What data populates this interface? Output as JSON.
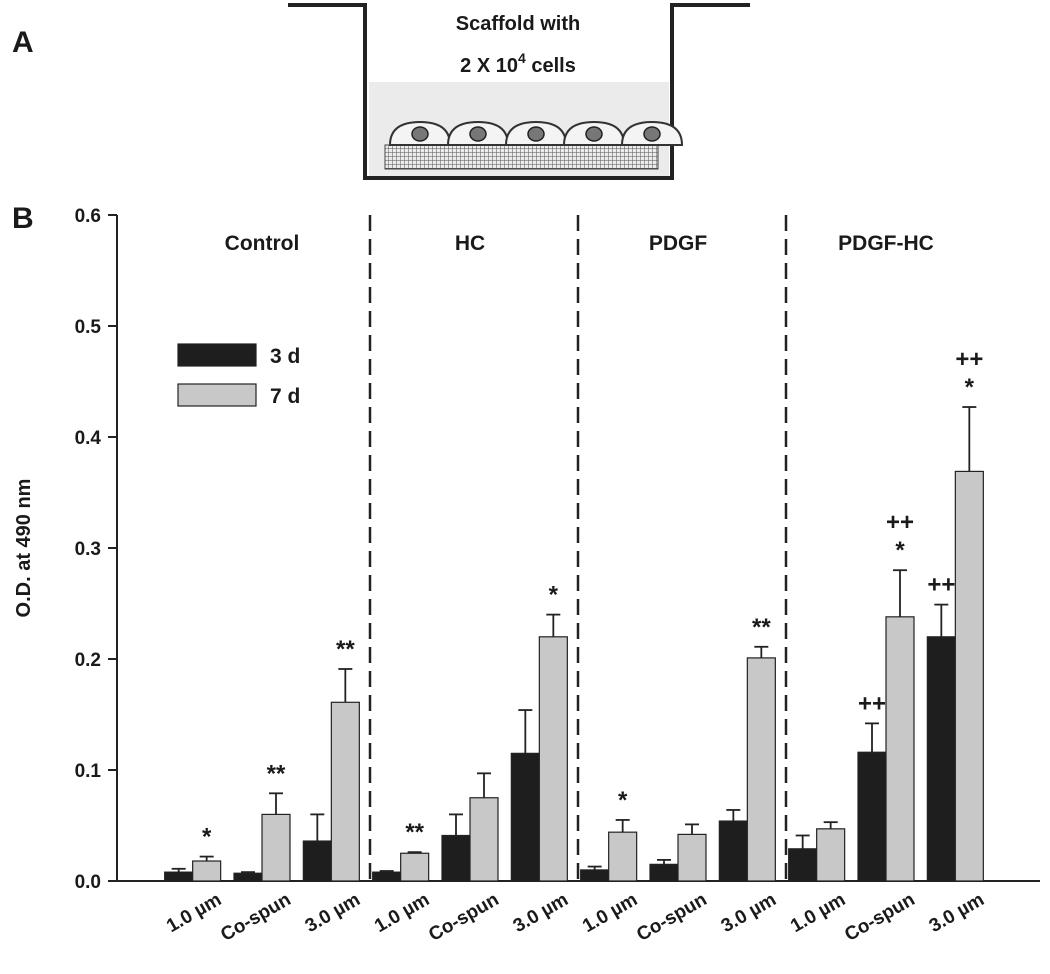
{
  "panel_labels": [
    "A",
    "B"
  ],
  "diagram": {
    "line1": "Scaffold with",
    "line2_base": "2 X 10",
    "line2_sup": "4",
    "line2_end": "cells"
  },
  "chart_data": {
    "type": "bar",
    "y_label": "O.D. at 490 nm",
    "groups": [
      "Control",
      "HC",
      "PDGF",
      "PDGF-HC"
    ],
    "categories": [
      "1.0 µm",
      "Co-spun",
      "3.0 µm",
      "1.0 µm",
      "Co-spun",
      "3.0 µm",
      "1.0 µm",
      "Co-spun",
      "3.0 µm",
      "1.0 µm",
      "Co-spun",
      "3.0 µm"
    ],
    "series": [
      {
        "name": "3 d",
        "color": "#1e1e1e",
        "values": [
          0.008,
          0.007,
          0.036,
          0.008,
          0.041,
          0.115,
          0.01,
          0.015,
          0.054,
          0.029,
          0.116,
          0.22
        ],
        "errors": [
          0.003,
          0.001,
          0.024,
          0.001,
          0.019,
          0.039,
          0.003,
          0.004,
          0.01,
          0.012,
          0.026,
          0.029
        ],
        "annotations": [
          null,
          null,
          null,
          null,
          null,
          null,
          null,
          null,
          null,
          null,
          [
            "++"
          ],
          [
            "++"
          ]
        ]
      },
      {
        "name": "7 d",
        "color": "#c8c8c8",
        "values": [
          0.018,
          0.06,
          0.161,
          0.025,
          0.075,
          0.22,
          0.044,
          0.042,
          0.201,
          0.047,
          0.238,
          0.369
        ],
        "errors": [
          0.004,
          0.019,
          0.03,
          0.001,
          0.022,
          0.02,
          0.011,
          0.009,
          0.01,
          0.006,
          0.042,
          0.058
        ],
        "annotations": [
          [
            "*"
          ],
          [
            "**"
          ],
          [
            "**"
          ],
          [
            "**"
          ],
          null,
          [
            "*"
          ],
          [
            "*"
          ],
          null,
          [
            "**"
          ],
          null,
          [
            "++",
            "*"
          ],
          [
            "++",
            "*"
          ]
        ]
      }
    ],
    "ylim": [
      0,
      0.6
    ],
    "yticks": [
      {
        "value": 0,
        "label": "0.0"
      },
      0.1,
      0.2,
      0.3,
      0.4,
      0.5,
      0.6
    ],
    "legend": "upper left"
  }
}
